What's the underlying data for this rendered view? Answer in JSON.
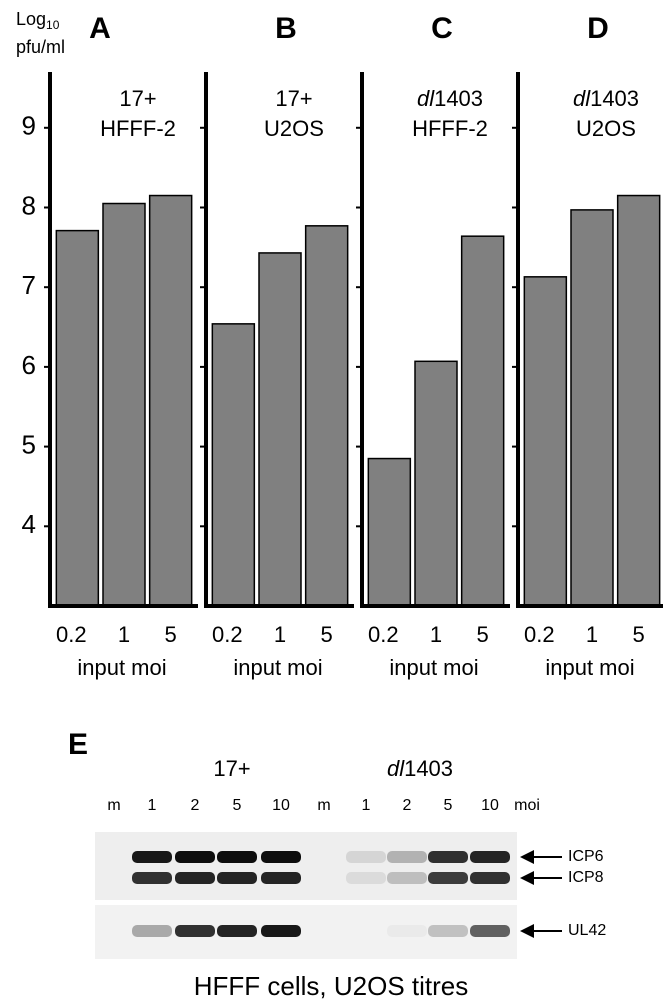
{
  "y_label": {
    "text": "Log",
    "subscript": "10",
    "unit": "pfu/ml"
  },
  "chart_data": [
    {
      "type": "bar",
      "title": "A",
      "subtitle": [
        "17+",
        "HFFF-2"
      ],
      "categories": [
        "0.2",
        "1",
        "5"
      ],
      "values": [
        7.71,
        8.05,
        8.15
      ],
      "color": "#808080",
      "ylim": [
        3,
        9.7
      ],
      "yticks": [
        4,
        5,
        6,
        7,
        8,
        9
      ],
      "show_tick_labels": true,
      "x_label": "input moi"
    },
    {
      "type": "bar",
      "title": "B",
      "subtitle": [
        "17+",
        "U2OS"
      ],
      "categories": [
        "0.2",
        "1",
        "5"
      ],
      "values": [
        6.54,
        7.43,
        7.77
      ],
      "color": "#808080",
      "ylim": [
        3,
        9.7
      ],
      "yticks": [
        4,
        5,
        6,
        7,
        8,
        9
      ],
      "show_tick_labels": false,
      "x_label": "input moi"
    },
    {
      "type": "bar",
      "title": "C",
      "subtitle": [
        "dl1403",
        "HFFF-2"
      ],
      "categories": [
        "0.2",
        "1",
        "5"
      ],
      "values": [
        4.85,
        6.07,
        7.64
      ],
      "color": "#808080",
      "ylim": [
        3,
        9.7
      ],
      "yticks": [
        4,
        5,
        6,
        7,
        8,
        9
      ],
      "show_tick_labels": false,
      "x_label": "input moi"
    },
    {
      "type": "bar",
      "title": "D",
      "subtitle": [
        "dl1403",
        "U2OS"
      ],
      "categories": [
        "0.2",
        "1",
        "5"
      ],
      "values": [
        7.13,
        7.97,
        8.15
      ],
      "color": "#808080",
      "ylim": [
        3,
        9.7
      ],
      "yticks": [
        4,
        5,
        6,
        7,
        8,
        9
      ],
      "show_tick_labels": false,
      "x_label": "input moi"
    }
  ],
  "blot": {
    "title": "E",
    "groups": [
      "17+",
      "dl1403"
    ],
    "lanes": [
      "m",
      "1",
      "2",
      "5",
      "10",
      "m",
      "1",
      "2",
      "5",
      "10",
      "moi"
    ],
    "bands": [
      "ICP6",
      "ICP8",
      "UL42"
    ],
    "caption": "HFFF cells, U2OS titres"
  }
}
